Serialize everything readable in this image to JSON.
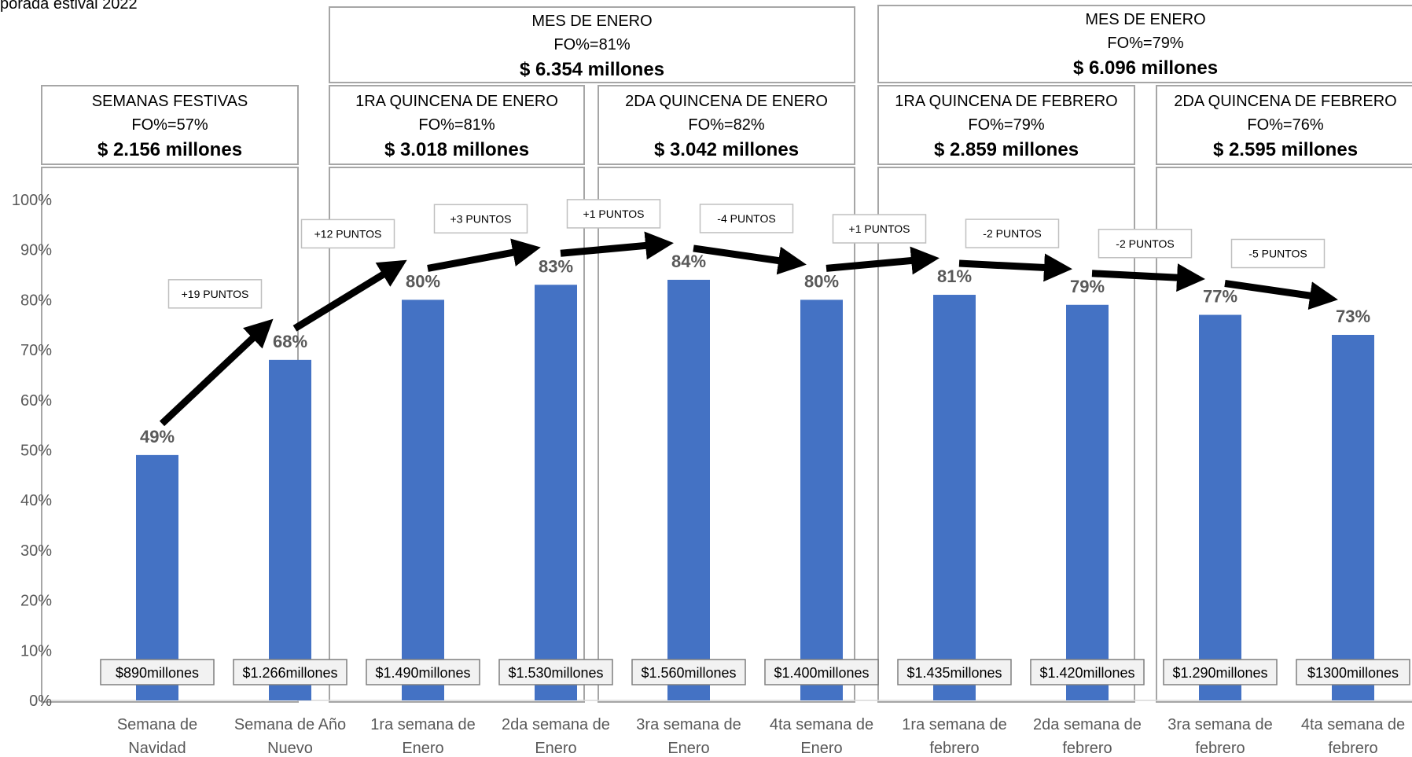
{
  "corner_title": "porada estival 2022",
  "month_boxes": [
    {
      "title": "MES DE ENERO",
      "fo": "FO%=81%",
      "amount": "$ 6.354 millones"
    },
    {
      "title": "MES DE ENERO",
      "fo": "FO%=79%",
      "amount": "$ 6.096 millones"
    }
  ],
  "period_boxes": [
    {
      "title": "SEMANAS FESTIVAS",
      "fo": "FO%=57%",
      "amount": "$ 2.156 millones"
    },
    {
      "title": "1RA QUINCENA DE ENERO",
      "fo": "FO%=81%",
      "amount": "$ 3.018 millones"
    },
    {
      "title": "2DA QUINCENA DE ENERO",
      "fo": "FO%=82%",
      "amount": "$ 3.042 millones"
    },
    {
      "title": "1RA QUINCENA DE FEBRERO",
      "fo": "FO%=79%",
      "amount": "$ 2.859 millones"
    },
    {
      "title": "2DA QUINCENA DE FEBRERO",
      "fo": "FO%=76%",
      "amount": "$ 2.595 millones"
    }
  ],
  "chart_data": {
    "type": "bar",
    "categories": [
      [
        "Semana de",
        "Navidad"
      ],
      [
        "Semana de Año",
        "Nuevo"
      ],
      [
        "1ra semana de",
        "Enero"
      ],
      [
        "2da semana de",
        "Enero"
      ],
      [
        "3ra semana de",
        "Enero"
      ],
      [
        "4ta semana de",
        "Enero"
      ],
      [
        "1ra semana de",
        "febrero"
      ],
      [
        "2da semana de",
        "febrero"
      ],
      [
        "3ra semana de",
        "febrero"
      ],
      [
        "4ta semana de",
        "febrero"
      ]
    ],
    "values": [
      49,
      68,
      80,
      83,
      84,
      80,
      81,
      79,
      77,
      73
    ],
    "data_labels": [
      "49%",
      "68%",
      "80%",
      "83%",
      "84%",
      "80%",
      "81%",
      "79%",
      "77%",
      "73%"
    ],
    "amount_labels": [
      "$890millones",
      "$1.266millones",
      "$1.490millones",
      "$1.530millones",
      "$1.560millones",
      "$1.400millones",
      "$1.435millones",
      "$1.420millones",
      "$1.290millones",
      "$1300millones"
    ],
    "change_labels": [
      "+19 PUNTOS",
      "+12 PUNTOS",
      "+3 PUNTOS",
      "+1 PUNTOS",
      "-4 PUNTOS",
      "+1 PUNTOS",
      "-2 PUNTOS",
      "-2 PUNTOS",
      "-5 PUNTOS"
    ],
    "y_ticks": [
      "0%",
      "10%",
      "20%",
      "30%",
      "40%",
      "50%",
      "60%",
      "70%",
      "80%",
      "90%",
      "100%"
    ],
    "ylim": [
      0,
      100
    ],
    "bar_color": "#4472c4",
    "grid": false
  }
}
